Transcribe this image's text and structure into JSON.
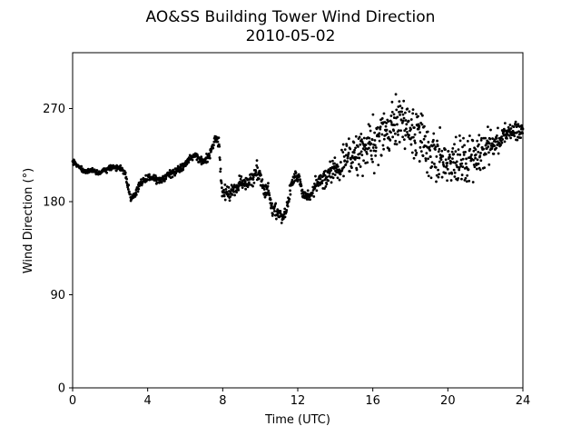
{
  "chart_data": {
    "type": "scatter",
    "title": "AO&SS Building Tower Wind Direction",
    "subtitle": "2010-05-02",
    "xlabel": "Time (UTC)",
    "ylabel": "Wind Direction (°)",
    "xlim": [
      0,
      24
    ],
    "ylim": [
      0,
      324
    ],
    "xticks": [
      0,
      4,
      8,
      12,
      16,
      20,
      24
    ],
    "yticks": [
      0,
      90,
      180,
      270
    ],
    "grid": false,
    "marker_color": "#000000",
    "trend": [
      [
        0.0,
        219
      ],
      [
        0.3,
        214
      ],
      [
        0.6,
        209
      ],
      [
        1.0,
        211
      ],
      [
        1.4,
        208
      ],
      [
        1.8,
        211
      ],
      [
        2.2,
        213
      ],
      [
        2.6,
        212
      ],
      [
        2.8,
        206
      ],
      [
        2.95,
        195
      ],
      [
        3.1,
        182
      ],
      [
        3.3,
        186
      ],
      [
        3.6,
        198
      ],
      [
        4.0,
        203
      ],
      [
        4.4,
        202
      ],
      [
        4.8,
        201
      ],
      [
        5.1,
        206
      ],
      [
        5.5,
        210
      ],
      [
        5.8,
        212
      ],
      [
        6.2,
        222
      ],
      [
        6.6,
        225
      ],
      [
        7.0,
        218
      ],
      [
        7.3,
        226
      ],
      [
        7.6,
        242
      ],
      [
        7.8,
        236
      ],
      [
        7.85,
        220
      ],
      [
        7.95,
        190
      ],
      [
        8.3,
        189
      ],
      [
        8.6,
        191
      ],
      [
        8.9,
        198
      ],
      [
        9.2,
        196
      ],
      [
        9.5,
        202
      ],
      [
        9.8,
        210
      ],
      [
        10.0,
        204
      ],
      [
        10.2,
        191
      ],
      [
        10.45,
        190
      ],
      [
        10.6,
        173
      ],
      [
        11.0,
        169
      ],
      [
        11.25,
        162
      ],
      [
        11.5,
        181
      ],
      [
        11.8,
        205
      ],
      [
        12.05,
        203
      ],
      [
        12.3,
        186
      ],
      [
        12.7,
        188
      ],
      [
        13.0,
        199
      ],
      [
        13.4,
        202
      ],
      [
        13.8,
        210
      ],
      [
        14.3,
        213
      ],
      [
        14.7,
        225
      ],
      [
        15.2,
        228
      ],
      [
        15.7,
        230
      ],
      [
        16.1,
        238
      ],
      [
        16.5,
        242
      ],
      [
        16.9,
        250
      ],
      [
        17.3,
        256
      ],
      [
        17.7,
        260
      ],
      [
        18.1,
        252
      ],
      [
        18.6,
        245
      ],
      [
        19.0,
        228
      ],
      [
        19.5,
        222
      ],
      [
        20.0,
        215
      ],
      [
        20.5,
        222
      ],
      [
        21.0,
        220
      ],
      [
        21.5,
        226
      ],
      [
        22.0,
        232
      ],
      [
        22.5,
        238
      ],
      [
        23.0,
        246
      ],
      [
        23.5,
        248
      ],
      [
        24.0,
        247
      ]
    ],
    "spread": [
      [
        0,
        2
      ],
      [
        2.8,
        3
      ],
      [
        3.3,
        3
      ],
      [
        7.6,
        4
      ],
      [
        8.0,
        6
      ],
      [
        9.8,
        8
      ],
      [
        10.2,
        6
      ],
      [
        11.5,
        7
      ],
      [
        12.3,
        5
      ],
      [
        14.0,
        12
      ],
      [
        15.0,
        17
      ],
      [
        16.0,
        20
      ],
      [
        17.0,
        25
      ],
      [
        18.0,
        22
      ],
      [
        19.0,
        24
      ],
      [
        20.0,
        22
      ],
      [
        21.0,
        20
      ],
      [
        22.0,
        16
      ],
      [
        23.0,
        9
      ],
      [
        24.0,
        8
      ]
    ],
    "point_count": 1440
  }
}
